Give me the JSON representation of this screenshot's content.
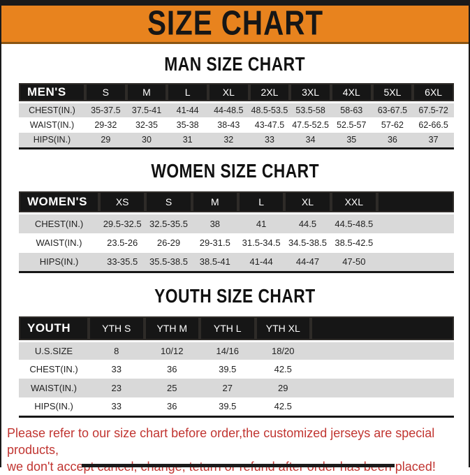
{
  "page": {
    "title": "SIZE CHART",
    "banner_color": "#e8831e",
    "header_bar_color": "#161616",
    "stripe_row_color": "#d9d9d9",
    "disclaimer_color": "#c13531",
    "disclaimer_line1": "Please refer to our size chart before order,the customized jerseys are special products,",
    "disclaimer_line2": "we don't accept cancel, change, teturn or refund after order has been placed!"
  },
  "charts": [
    {
      "id": "men",
      "title": "MAN SIZE CHART",
      "header": [
        "MEN'S",
        "S",
        "M",
        "L",
        "XL",
        "2XL",
        "3XL",
        "4XL",
        "5XL",
        "6XL"
      ],
      "rows": [
        [
          "CHEST(IN.)",
          "35-37.5",
          "37.5-41",
          "41-44",
          "44-48.5",
          "48.5-53.5",
          "53.5-58",
          "58-63",
          "63-67.5",
          "67.5-72"
        ],
        [
          "WAIST(IN.)",
          "29-32",
          "32-35",
          "35-38",
          "38-43",
          "43-47.5",
          "47.5-52.5",
          "52.5-57",
          "57-62",
          "62-66.5"
        ],
        [
          "HIPS(IN.)",
          "29",
          "30",
          "31",
          "32",
          "33",
          "34",
          "35",
          "36",
          "37"
        ]
      ]
    },
    {
      "id": "women",
      "title": "WOMEN SIZE CHART",
      "header": [
        "WOMEN'S",
        "XS",
        "S",
        "M",
        "L",
        "XL",
        "XXL"
      ],
      "rows": [
        [
          "CHEST(IN.)",
          "29.5-32.5",
          "32.5-35.5",
          "38",
          "41",
          "44.5",
          "44.5-48.5"
        ],
        [
          "WAIST(IN.)",
          "23.5-26",
          "26-29",
          "29-31.5",
          "31.5-34.5",
          "34.5-38.5",
          "38.5-42.5"
        ],
        [
          "HIPS(IN.)",
          "33-35.5",
          "35.5-38.5",
          "38.5-41",
          "41-44",
          "44-47",
          "47-50"
        ]
      ]
    },
    {
      "id": "youth",
      "title": "YOUTH SIZE CHART",
      "header": [
        "YOUTH",
        "YTH S",
        "YTH M",
        "YTH L",
        "YTH XL"
      ],
      "rows": [
        [
          "U.S.SIZE",
          "8",
          "10/12",
          "14/16",
          "18/20"
        ],
        [
          "CHEST(IN.)",
          "33",
          "36",
          "39.5",
          "42.5"
        ],
        [
          "WAIST(IN.)",
          "23",
          "25",
          "27",
          "29"
        ],
        [
          "HIPS(IN.)",
          "33",
          "36",
          "39.5",
          "42.5"
        ]
      ]
    }
  ]
}
